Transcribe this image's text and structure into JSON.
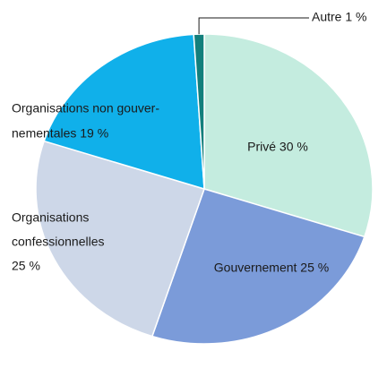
{
  "chart_data": {
    "type": "pie",
    "values": [
      30,
      25,
      25,
      19,
      1
    ],
    "value_labels": [
      [
        "Privé 30 %"
      ],
      [
        "Gouvernement 25 %"
      ],
      [
        "Organisations",
        "confessionnelles",
        "25 %"
      ],
      [
        "Organisations non gouver-",
        "nementales 19 %"
      ],
      [
        "Autre 1 %"
      ]
    ],
    "colors": [
      "#c4ecdf",
      "#7b9bd9",
      "#cdd7e8",
      "#10b0ea",
      "#137f7c"
    ]
  }
}
